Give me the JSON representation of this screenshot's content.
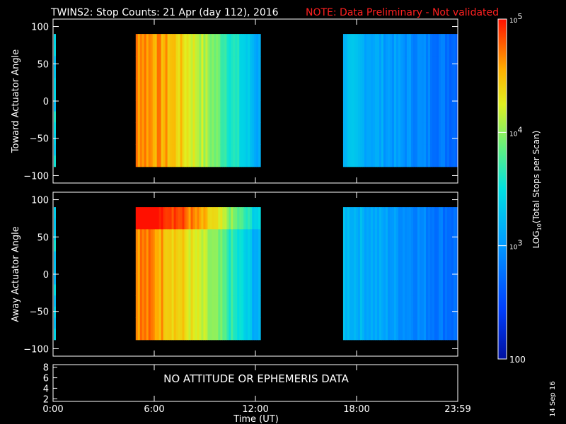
{
  "chart_data": [
    {
      "type": "heatmap",
      "title": "TWINS2: Stop Counts: 21 Apr (day 112), 2016",
      "note": "NOTE: Data Preliminary - Not validated",
      "ylabel": "Toward Actuator Angle",
      "ylim": [
        -110,
        110
      ],
      "yticks": [
        100,
        50,
        0,
        -50,
        -100
      ],
      "xlim": [
        0,
        24
      ],
      "data_blocks": [
        {
          "x_start": 4.9,
          "x_end": 12.3,
          "y_range": [
            -88,
            90
          ]
        },
        {
          "x_start": 17.2,
          "x_end": 24.0,
          "y_range": [
            -88,
            90
          ]
        }
      ]
    },
    {
      "type": "heatmap",
      "ylabel": "Away Actuator Angle",
      "ylim": [
        -110,
        110
      ],
      "yticks": [
        100,
        50,
        0,
        -50,
        -100
      ],
      "xlim": [
        0,
        24
      ],
      "data_blocks": [
        {
          "x_start": 4.9,
          "x_end": 12.3,
          "y_range": [
            -88,
            90
          ]
        },
        {
          "x_start": 17.2,
          "x_end": 24.0,
          "y_range": [
            -88,
            90
          ]
        }
      ]
    },
    {
      "type": "line",
      "ylim": [
        1.5,
        8.5
      ],
      "yticks": [
        8,
        6,
        4,
        2
      ],
      "message": "NO ATTITUDE OR EPHEMERIS DATA",
      "xlabel": "Time (UT)",
      "xticks": [
        "0:00",
        "6:00",
        "12:00",
        "18:00",
        "23:59"
      ],
      "xtick_values": [
        0,
        6,
        12,
        18,
        24
      ]
    }
  ],
  "colorbar": {
    "label": "LOG10(Total Stops per Scan)",
    "label_base": "LOG",
    "label_sub": "10",
    "label_rest": "(Total Stops per Scan)",
    "ticks": [
      {
        "value": 100000,
        "base": "10",
        "exp": "5"
      },
      {
        "value": 10000,
        "base": "10",
        "exp": "4"
      },
      {
        "value": 1000,
        "base": "10",
        "exp": "3"
      },
      {
        "value": 100,
        "text": "100"
      }
    ],
    "range": [
      100,
      100000
    ],
    "scale": "log"
  },
  "colors": {
    "note": "#ff2020",
    "background": "#000000",
    "axes": "#ffffff"
  },
  "datestamp": "14 Sep 16"
}
